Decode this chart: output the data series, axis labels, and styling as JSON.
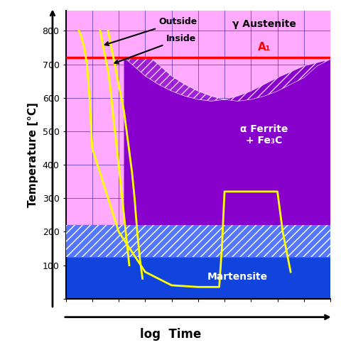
{
  "xlabel": "log  Time",
  "ylabel": "Temperature [°C]",
  "xlim": [
    0,
    10
  ],
  "ylim": [
    0,
    860
  ],
  "A1_temp": 720,
  "Ms_temp": 220,
  "Mf_temp": 125,
  "background_austenite": "#ffaaff",
  "background_main": "#ffaaff",
  "color_purple": "#8800cc",
  "color_purple_dark": "#6600aa",
  "color_blue_hatch": "#4466ff",
  "color_blue_solid": "#1144dd",
  "color_red_A1": "#ff0000",
  "color_yellow": "#ffff00",
  "color_grid": "#0000aa",
  "text_gamma": "γ Austenite",
  "text_ferrite": "α Ferrite\n+ Fe₃C",
  "text_martensite": "Martensite",
  "text_outside": "Outside",
  "text_inside": "Inside",
  "text_A1": "A₁"
}
